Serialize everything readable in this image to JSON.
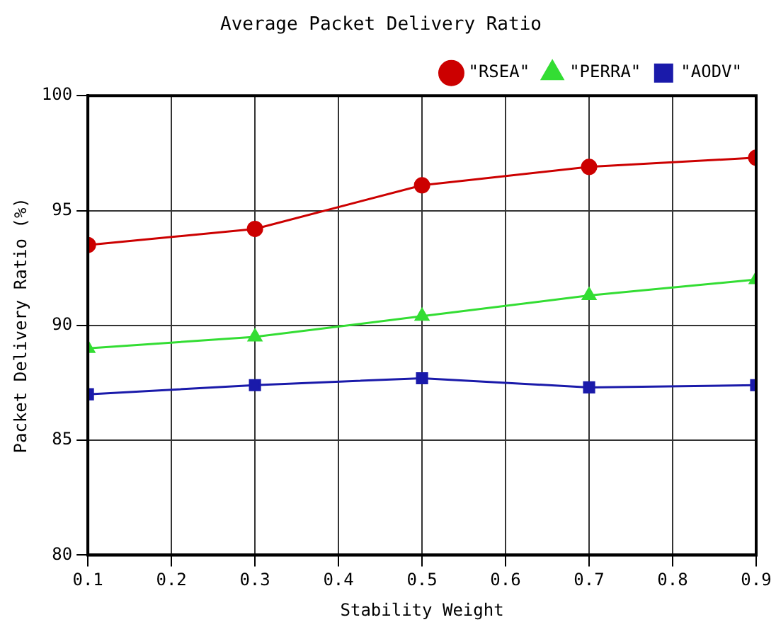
{
  "chart_data": {
    "type": "line",
    "title": "Average Packet Delivery Ratio",
    "xlabel": "Stability Weight",
    "ylabel": "Packet Delivery Ratio (%)",
    "x": [
      0.1,
      0.3,
      0.5,
      0.7,
      0.9
    ],
    "series": [
      {
        "name": "\"RSEA\"",
        "color": "#cc0000",
        "marker": "circle",
        "values": [
          93.5,
          94.2,
          96.1,
          96.9,
          97.3
        ]
      },
      {
        "name": "\"PERRA\"",
        "color": "#33dd33",
        "marker": "triangle",
        "values": [
          89.0,
          89.5,
          90.4,
          91.3,
          92.0
        ]
      },
      {
        "name": "\"AODV\"",
        "color": "#1a1aaa",
        "marker": "square",
        "values": [
          87.0,
          87.4,
          87.7,
          87.3,
          87.4
        ]
      }
    ],
    "xlim": [
      0.1,
      0.9
    ],
    "xticks": [
      0.1,
      0.2,
      0.3,
      0.4,
      0.5,
      0.6,
      0.7,
      0.8,
      0.9
    ],
    "ylim": [
      80,
      100
    ],
    "yticks": [
      80,
      85,
      90,
      95,
      100
    ],
    "grid": true,
    "legend": "top right",
    "line_style": "solid"
  }
}
